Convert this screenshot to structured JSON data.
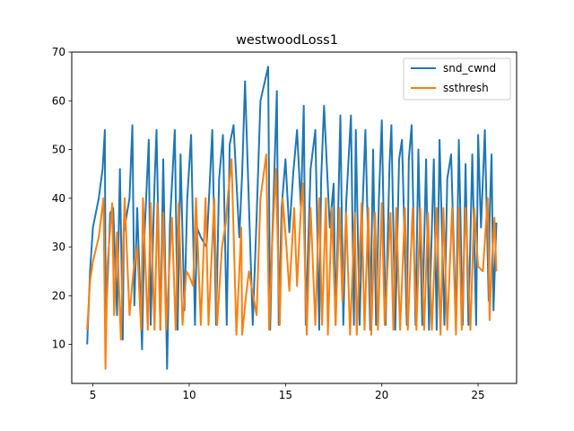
{
  "chart_data": {
    "type": "line",
    "title": "westwoodLoss1",
    "xlabel": "",
    "ylabel": "",
    "xlim": [
      3.9,
      27.0
    ],
    "ylim": [
      2.0,
      70.0
    ],
    "xticks": [
      5,
      10,
      15,
      20,
      25
    ],
    "yticks": [
      10,
      20,
      30,
      40,
      50,
      60,
      70
    ],
    "grid": false,
    "legend_position": "top-right",
    "series": [
      {
        "name": "snd_cwnd",
        "color": "#1f77b4",
        "x": [
          4.7,
          4.85,
          5.0,
          5.3,
          5.5,
          5.62,
          5.66,
          5.9,
          6.05,
          6.25,
          6.4,
          6.55,
          6.6,
          6.9,
          7.05,
          7.15,
          7.3,
          7.55,
          7.65,
          7.9,
          8.0,
          8.2,
          8.3,
          8.5,
          8.65,
          8.85,
          9.0,
          9.25,
          9.4,
          9.55,
          9.75,
          9.9,
          10.1,
          10.3,
          10.4,
          10.6,
          10.9,
          11.0,
          11.2,
          11.4,
          11.55,
          11.75,
          11.95,
          12.1,
          12.3,
          12.6,
          12.7,
          12.75,
          12.9,
          13.3,
          13.5,
          13.7,
          14.1,
          14.2,
          14.3,
          14.55,
          14.65,
          14.8,
          15.0,
          15.2,
          15.4,
          15.6,
          15.8,
          15.95,
          16.05,
          16.3,
          16.55,
          16.75,
          16.85,
          17.0,
          17.3,
          17.5,
          17.6,
          17.85,
          18.0,
          18.15,
          18.4,
          18.55,
          18.65,
          18.85,
          19.0,
          19.15,
          19.4,
          19.55,
          19.7,
          19.85,
          20.0,
          20.2,
          20.4,
          20.5,
          20.7,
          20.9,
          21.05,
          21.3,
          21.4,
          21.55,
          21.75,
          21.9,
          22.1,
          22.3,
          22.45,
          22.7,
          22.85,
          23.0,
          23.25,
          23.4,
          23.6,
          23.85,
          24.0,
          24.2,
          24.35,
          24.5,
          24.7,
          24.9,
          25.0,
          25.15,
          25.35,
          25.55,
          25.6,
          25.7,
          25.8,
          25.95
        ],
        "y": [
          10,
          25,
          34,
          40,
          46,
          54,
          13,
          37,
          38,
          16,
          46,
          11,
          33,
          40,
          55,
          18,
          38,
          9,
          30,
          52,
          14,
          43,
          54,
          13,
          48,
          5,
          35,
          54,
          13,
          49,
          17,
          40,
          53,
          14,
          34,
          32,
          30,
          38,
          54,
          14,
          44,
          53,
          14,
          51,
          55,
          32,
          41,
          45,
          64,
          14,
          36,
          60,
          67,
          13,
          30,
          62,
          14,
          38,
          48,
          33,
          45,
          54,
          38,
          59,
          14,
          46,
          54,
          13,
          44,
          59,
          34,
          43,
          14,
          57,
          14,
          39,
          57,
          14,
          54,
          14,
          38,
          54,
          13,
          50,
          14,
          40,
          56,
          14,
          47,
          55,
          13,
          48,
          52,
          14,
          48,
          55,
          14,
          50,
          14,
          48,
          13,
          48,
          13,
          52,
          14,
          44,
          49,
          14,
          52,
          14,
          47,
          14,
          49,
          14,
          53,
          34,
          54,
          19,
          36,
          49,
          17,
          35
        ]
      },
      {
        "name": "ssthresh",
        "color": "#ff7f0e",
        "x": [
          4.7,
          4.85,
          5.0,
          5.3,
          5.55,
          5.65,
          5.75,
          6.0,
          6.1,
          6.25,
          6.45,
          6.55,
          6.65,
          6.9,
          7.1,
          7.3,
          7.5,
          7.6,
          7.85,
          8.0,
          8.2,
          8.35,
          8.5,
          8.65,
          8.8,
          9.1,
          9.3,
          9.45,
          9.65,
          9.85,
          10.0,
          10.2,
          10.35,
          10.6,
          10.85,
          11.0,
          11.3,
          11.45,
          11.7,
          11.9,
          12.0,
          12.2,
          12.45,
          12.7,
          12.75,
          12.95,
          13.1,
          13.5,
          13.7,
          14.0,
          14.15,
          14.3,
          14.5,
          14.7,
          14.85,
          15.05,
          15.2,
          15.45,
          15.6,
          15.8,
          15.9,
          16.1,
          16.3,
          16.55,
          16.75,
          16.9,
          17.1,
          17.2,
          17.4,
          17.6,
          17.8,
          17.95,
          18.15,
          18.35,
          18.6,
          18.7,
          18.95,
          19.1,
          19.3,
          19.45,
          19.65,
          19.8,
          20.0,
          20.15,
          20.45,
          20.6,
          20.75,
          20.95,
          21.2,
          21.35,
          21.6,
          21.8,
          22.0,
          22.2,
          22.4,
          22.6,
          22.85,
          23.05,
          23.2,
          23.4,
          23.65,
          23.85,
          24.0,
          24.15,
          24.35,
          24.6,
          24.8,
          25.0,
          25.25,
          25.5,
          25.6,
          25.7,
          25.85,
          25.95
        ],
        "y": [
          13,
          23,
          27,
          32,
          40,
          5,
          26,
          39,
          16,
          33,
          11,
          28,
          40,
          16,
          25,
          30,
          13,
          40,
          13,
          39,
          13,
          39,
          13,
          37,
          13,
          36,
          13,
          39,
          14,
          25,
          24,
          22,
          40,
          14,
          40,
          14,
          40,
          14,
          30,
          35,
          40,
          48,
          12,
          34,
          12,
          20,
          25,
          16,
          40,
          49,
          13,
          30,
          46,
          14,
          40,
          30,
          21,
          38,
          22,
          38,
          43,
          12,
          38,
          14,
          40,
          14,
          40,
          12,
          38,
          14,
          38,
          19,
          37,
          12,
          37,
          12,
          39,
          13,
          38,
          12,
          37,
          13,
          39,
          14,
          37,
          13,
          38,
          13,
          38,
          13,
          38,
          13,
          38,
          13,
          37,
          13,
          38,
          12,
          38,
          13,
          38,
          12,
          38,
          13,
          38,
          13,
          38,
          26,
          25,
          40,
          15,
          26,
          36,
          25
        ]
      }
    ]
  }
}
